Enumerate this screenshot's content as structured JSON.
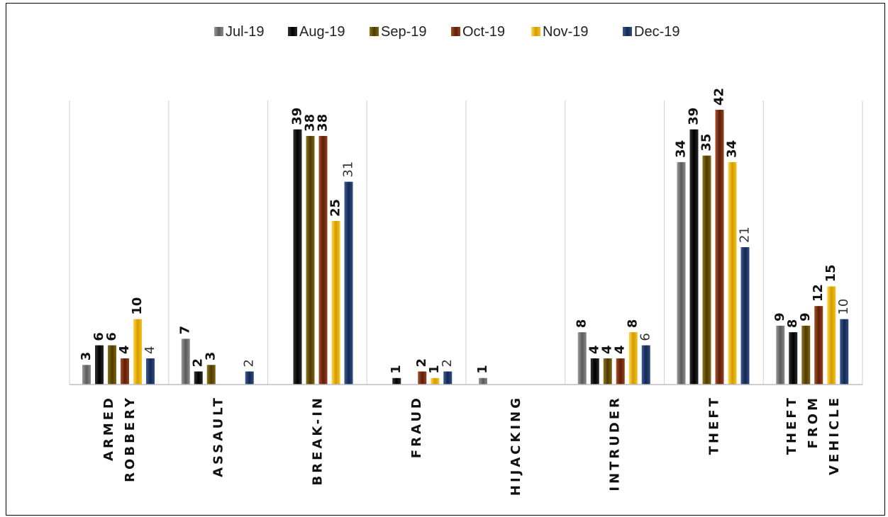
{
  "chart_data": {
    "type": "bar",
    "categories": [
      [
        "ARMED",
        "ROBBERY"
      ],
      [
        "ASSAULT"
      ],
      [
        "BREAK-IN"
      ],
      [
        "FRAUD"
      ],
      [
        "HIJACKING"
      ],
      [
        "INTRUDER"
      ],
      [
        "THEFT"
      ],
      [
        "THEFT",
        "FROM",
        "VEHICLE"
      ]
    ],
    "series": [
      {
        "name": "Jul-19",
        "color": "#6e6e6e",
        "values": [
          3,
          7,
          null,
          null,
          1,
          8,
          34,
          9
        ]
      },
      {
        "name": "Aug-19",
        "color": "#111111",
        "values": [
          6,
          2,
          39,
          1,
          null,
          4,
          39,
          8
        ]
      },
      {
        "name": "Sep-19",
        "color": "#6b5200",
        "values": [
          6,
          3,
          38,
          null,
          null,
          4,
          35,
          9
        ]
      },
      {
        "name": "Oct-19",
        "color": "#7a2e12",
        "values": [
          4,
          null,
          38,
          2,
          null,
          4,
          42,
          12
        ]
      },
      {
        "name": "Nov-19",
        "color": "#f0b400",
        "values": [
          10,
          null,
          25,
          1,
          null,
          8,
          34,
          15
        ]
      },
      {
        "name": "Dec-19",
        "color": "#1f3a6e",
        "values": [
          4,
          2,
          31,
          2,
          null,
          6,
          21,
          10
        ]
      }
    ],
    "ylim": [
      0,
      45
    ],
    "legend_position": "top",
    "grid": "vertical category separators"
  }
}
